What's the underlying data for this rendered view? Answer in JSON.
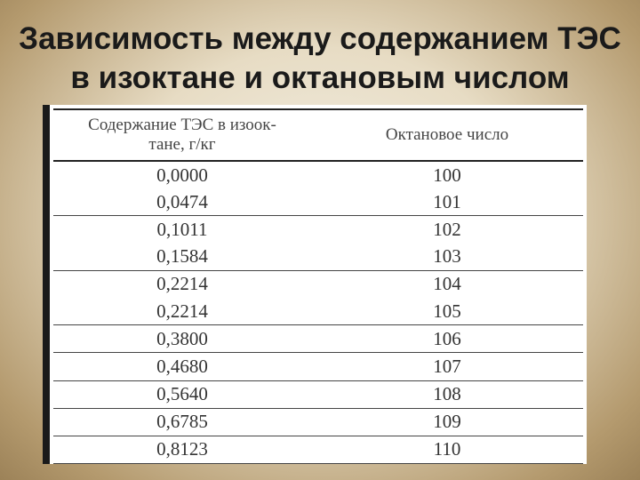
{
  "title": {
    "line1": "Зависимость между содержанием ТЭС",
    "line2": "в изоктане и октановым числом"
  },
  "table": {
    "headers": {
      "col1_line1": "Содержание ТЭС в изоок-",
      "col1_line2": "тане, г/кг",
      "col2": "Октановое число"
    },
    "rows": [
      {
        "tes": "0,0000",
        "octane": "100"
      },
      {
        "tes": "0,0474",
        "octane": "101"
      },
      {
        "tes": "0,1011",
        "octane": "102"
      },
      {
        "tes": "0,1584",
        "octane": "103"
      },
      {
        "tes": "0,2214",
        "octane": "104"
      },
      {
        "tes": "0,2214",
        "octane": "105"
      },
      {
        "tes": "0,3800",
        "octane": "106"
      },
      {
        "tes": "0,4680",
        "octane": "107"
      },
      {
        "tes": "0,5640",
        "octane": "108"
      },
      {
        "tes": "0,6785",
        "octane": "109"
      },
      {
        "tes": "0,8123",
        "octane": "110"
      }
    ]
  }
}
